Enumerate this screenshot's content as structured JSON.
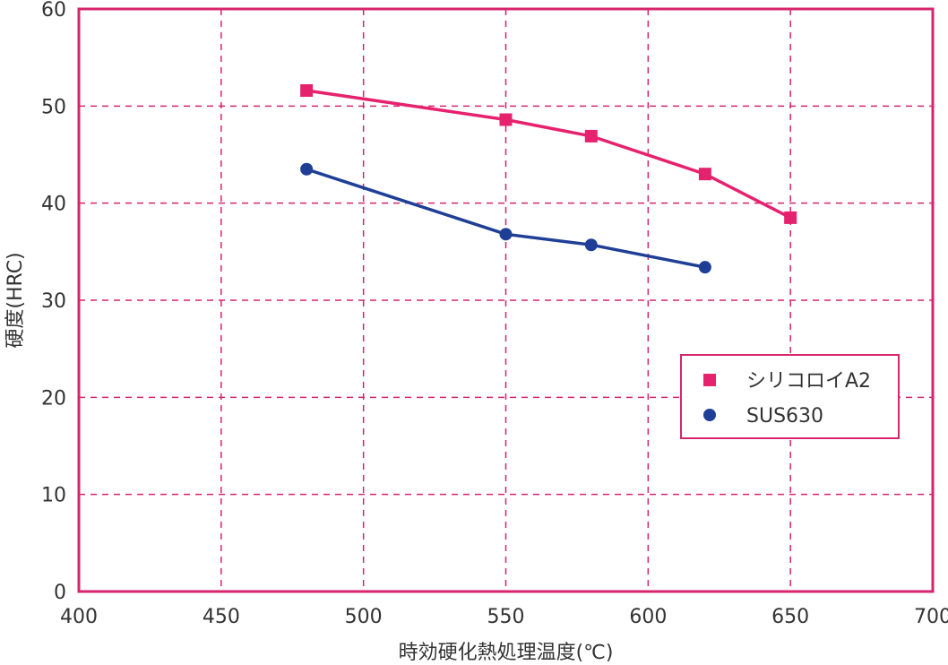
{
  "chart_data": {
    "type": "line",
    "title": "",
    "xlabel": "時効硬化熱処理温度(℃)",
    "ylabel": "硬度(HRC)",
    "xlim": [
      400,
      700
    ],
    "ylim": [
      0,
      60
    ],
    "xticks": [
      400,
      450,
      500,
      550,
      600,
      650,
      700
    ],
    "yticks": [
      0,
      10,
      20,
      30,
      40,
      50,
      60
    ],
    "grid": true,
    "legend_position": "right",
    "frame_color": "#d6246e",
    "series": [
      {
        "name": "シリコロイA2",
        "marker": "square",
        "color": "#e6226f",
        "x": [
          480,
          550,
          580,
          620,
          650
        ],
        "y": [
          51.6,
          48.6,
          46.9,
          43.0,
          38.5
        ]
      },
      {
        "name": "SUS630",
        "marker": "circle",
        "color": "#1f3f97",
        "x": [
          480,
          550,
          580,
          620
        ],
        "y": [
          43.5,
          36.8,
          35.7,
          33.4
        ]
      }
    ]
  }
}
